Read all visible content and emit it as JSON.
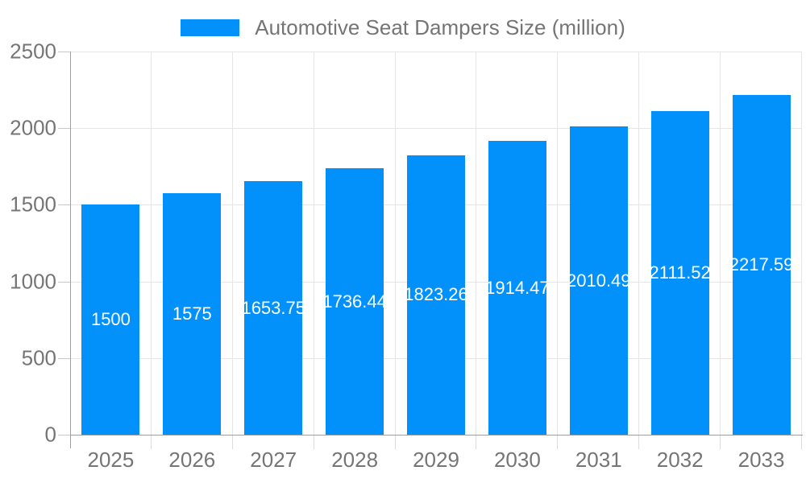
{
  "legend": {
    "label": "Automotive Seat Dampers Size (million)"
  },
  "chart_data": {
    "type": "bar",
    "title": "Automotive Seat Dampers Size (million)",
    "categories": [
      "2025",
      "2026",
      "2027",
      "2028",
      "2029",
      "2030",
      "2031",
      "2032",
      "2033"
    ],
    "values": [
      1500,
      1575,
      1653.75,
      1736.44,
      1823.26,
      1914.47,
      2010.49,
      2111.52,
      2217.59
    ],
    "value_labels": [
      "1500",
      "1575",
      "1653.75",
      "1736.44",
      "1823.26",
      "1914.47",
      "2010.49",
      "2111.52",
      "2217.59"
    ],
    "xlabel": "",
    "ylabel": "",
    "ylim": [
      0,
      2500
    ],
    "yticks": [
      0,
      500,
      1000,
      1500,
      2000,
      2500
    ],
    "grid": true,
    "legend_position": "top-center",
    "colors": {
      "bar": "#0291fb",
      "annotation_text": "#ffffff",
      "axis_text": "#757575",
      "gridline": "#e6e6e6",
      "axis_line": "#9e9e9e"
    }
  }
}
